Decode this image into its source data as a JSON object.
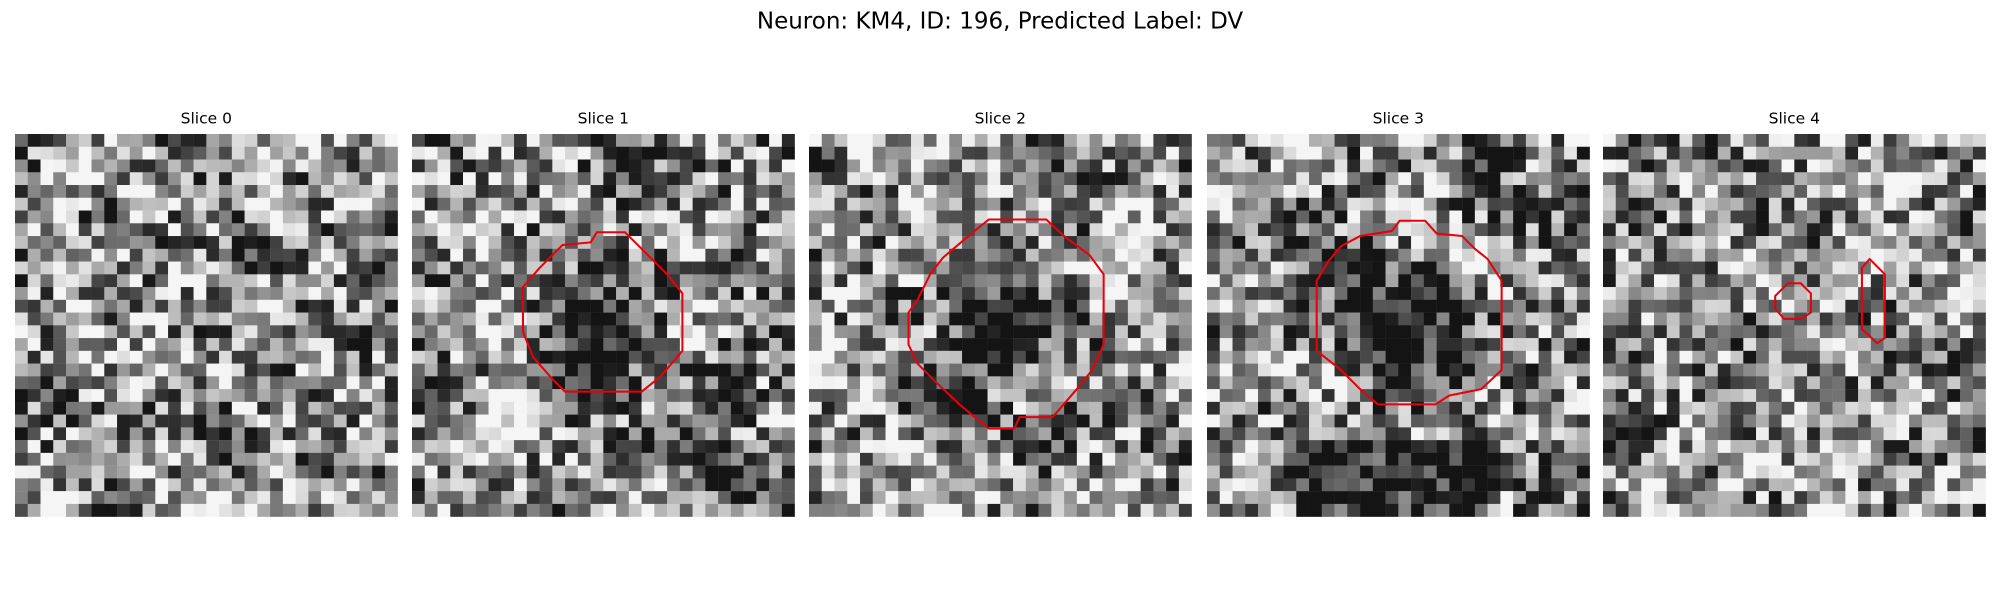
{
  "title": "Neuron: KM4, ID: 196, Predicted Label: DV",
  "panels": [
    {
      "title": "Slice 0"
    },
    {
      "title": "Slice 1"
    },
    {
      "title": "Slice 2"
    },
    {
      "title": "Slice 3"
    },
    {
      "title": "Slice 4"
    }
  ]
}
